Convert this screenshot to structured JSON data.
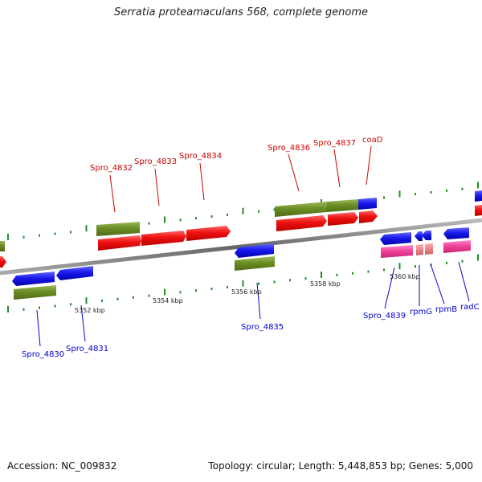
{
  "title": "Serratia proteamaculans 568, complete genome",
  "accession": "Accession: NC_009832",
  "stats": "Topology: circular; Length: 5,448,853 bp; Genes: 5,000",
  "colors": {
    "forward_label": "#cc0000",
    "reverse_label": "#0000cc",
    "cds": "#ee1111",
    "gene": "#6b8e23",
    "gene_reverse": "#1a1aee",
    "rna": "#ee4499",
    "rna_light": "#ee8888",
    "backbone": "#888888",
    "tick": "#228b22"
  },
  "axis_labels": [
    "5352 kbp",
    "5354 kbp",
    "5356 kbp",
    "5358 kbp",
    "5360 kbp"
  ],
  "gene_labels_top": [
    "Spro_4832",
    "Spro_4833",
    "Spro_4834",
    "Spro_4836",
    "Spro_4837",
    "coaD"
  ],
  "gene_labels_bottom": [
    "Spro_4830",
    "Spro_4831",
    "Spro_4835",
    "Spro_4839",
    "rpmG",
    "rpmB",
    "radC"
  ]
}
